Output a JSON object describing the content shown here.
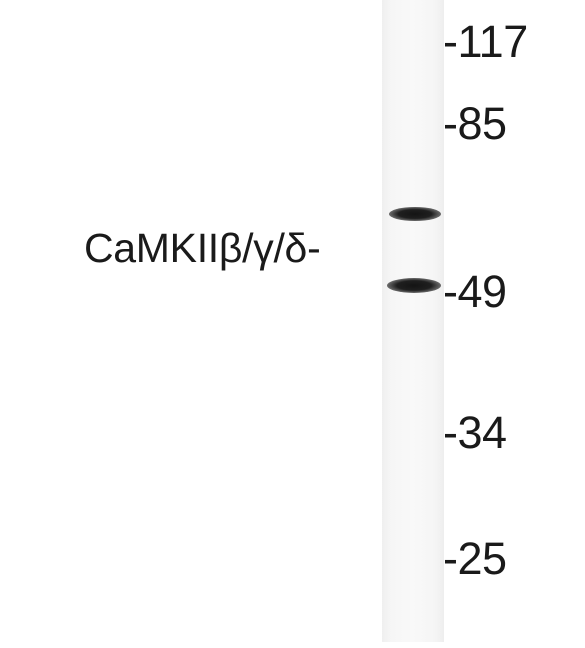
{
  "blot": {
    "protein_label": "CaMKIIβ/γ/δ-",
    "markers": [
      "-117",
      "-85",
      "-49",
      "-34",
      "-25"
    ]
  }
}
